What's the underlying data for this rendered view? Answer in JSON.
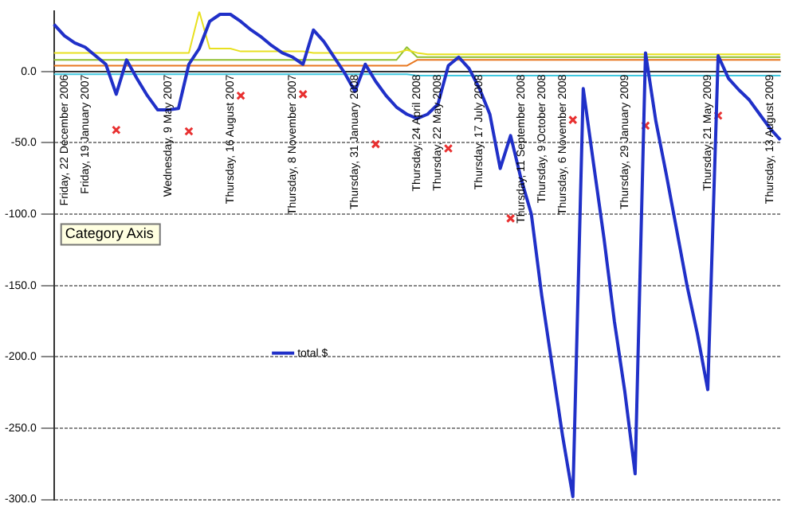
{
  "chart_data": {
    "type": "line",
    "categories": [
      null,
      "Friday, 22 December 2006",
      null,
      "Friday, 19 January 2007",
      null,
      null,
      null,
      null,
      null,
      null,
      null,
      "Wednesday, 9 May 2007",
      null,
      null,
      null,
      null,
      null,
      "Thursday, 16 August 2007",
      null,
      null,
      null,
      null,
      null,
      "Thursday, 8 November 2007",
      null,
      null,
      null,
      null,
      null,
      "Thursday, 31 January 2008",
      null,
      null,
      null,
      null,
      null,
      "Thursday, 24 April 2008",
      null,
      "Thursday, 22 May 2008",
      null,
      null,
      null,
      "Thursday, 17 July 2008",
      null,
      null,
      null,
      "Thursday, 11 September 2008",
      null,
      "Thursday, 9 October 2008",
      null,
      "Thursday, 6 November 2008",
      null,
      null,
      null,
      null,
      null,
      "Thursday, 29 January 2009",
      null,
      null,
      null,
      null,
      null,
      null,
      null,
      "Thursday, 21 May 2009",
      null,
      null,
      null,
      null,
      null,
      "Thursday, 13 August 2009",
      null
    ],
    "series": [
      {
        "color": "#e8e020",
        "values": [
          13,
          13,
          13,
          13,
          13,
          13,
          13,
          13,
          13,
          13,
          13,
          13,
          13,
          13,
          42,
          16,
          16,
          16,
          14,
          14,
          14,
          14,
          14,
          14,
          14,
          13,
          13,
          13,
          13,
          13,
          13,
          13,
          13,
          13,
          15,
          13,
          12,
          12,
          12,
          12,
          12,
          12,
          12,
          12,
          12,
          12,
          12,
          12,
          12,
          12,
          12,
          12,
          12,
          12,
          12,
          12,
          12,
          12,
          12,
          12,
          12,
          12,
          12,
          12,
          12,
          12,
          12,
          12,
          12,
          12,
          12
        ]
      },
      {
        "color": "#90c030",
        "values": [
          8,
          8,
          8,
          8,
          8,
          8,
          8,
          8,
          8,
          8,
          8,
          8,
          8,
          8,
          8,
          8,
          8,
          8,
          8,
          8,
          8,
          8,
          8,
          8,
          8,
          8,
          8,
          8,
          8,
          8,
          8,
          8,
          8,
          8,
          17,
          10,
          10,
          10,
          10,
          10,
          10,
          10,
          10,
          10,
          10,
          10,
          10,
          10,
          10,
          10,
          10,
          10,
          10,
          10,
          10,
          10,
          10,
          10,
          10,
          10,
          10,
          10,
          10,
          10,
          10,
          10,
          10,
          10,
          10,
          10,
          10
        ]
      },
      {
        "color": "#e87820",
        "values": [
          4,
          4,
          4,
          4,
          4,
          4,
          4,
          4,
          4,
          4,
          4,
          4,
          4,
          4,
          4,
          4,
          4,
          4,
          4,
          4,
          4,
          4,
          4,
          4,
          4,
          4,
          4,
          4,
          4,
          4,
          4,
          4,
          4,
          4,
          4,
          8,
          8,
          8,
          8,
          8,
          8,
          8,
          8,
          8,
          8,
          8,
          8,
          8,
          8,
          8,
          8,
          8,
          8,
          8,
          8,
          8,
          8,
          8,
          8,
          8,
          8,
          8,
          8,
          8,
          8,
          8,
          8,
          8,
          8,
          8,
          8
        ]
      },
      {
        "color": "#40c8e0",
        "values": [
          -2,
          -2,
          -2,
          -2,
          -2,
          -2,
          -2,
          -2,
          -2,
          -2,
          -2,
          -2,
          -2,
          -2,
          -2,
          -2,
          -2,
          -2,
          -2,
          -2,
          -2,
          -2,
          -2,
          -2,
          -2,
          -2,
          -2,
          -2,
          -2,
          -2,
          -2,
          -2,
          -2,
          -2,
          -2,
          -3,
          -3,
          -3,
          -3,
          -3,
          -3,
          -3,
          -3,
          -3,
          -3,
          -3,
          -3,
          -3,
          -3,
          -3,
          -3,
          -3,
          -3,
          -3,
          -3,
          -3,
          -3,
          -3,
          -3,
          -3,
          -3,
          -3,
          -3,
          -3,
          -3,
          -3,
          -3,
          -3,
          -3,
          -3,
          -3
        ]
      },
      {
        "name": "total $",
        "color": "#2030c8",
        "values": [
          33,
          25,
          20,
          17,
          11,
          5,
          -16,
          8,
          -5,
          -17,
          -27,
          -27,
          -26,
          5,
          16,
          35,
          40,
          40,
          35,
          29,
          24,
          18,
          13,
          10,
          5,
          29,
          21,
          10,
          -1,
          -14,
          5,
          -7,
          -17,
          -25,
          -30,
          -33,
          -30,
          -23,
          4,
          10,
          2,
          -12,
          -30,
          -68,
          -45,
          -75,
          -100,
          -157,
          -206,
          -255,
          -298,
          -12,
          -65,
          -117,
          -175,
          -224,
          -282,
          13,
          -35,
          -72,
          -111,
          -150,
          -184,
          -223,
          11,
          -5,
          -13,
          -20,
          -30,
          -40,
          -48
        ]
      },
      {
        "type": "scatter",
        "marker": "cross",
        "color": "#e83030",
        "values": [
          null,
          null,
          null,
          null,
          null,
          null,
          -41,
          null,
          null,
          null,
          null,
          null,
          null,
          -42,
          null,
          null,
          null,
          null,
          -17,
          null,
          null,
          null,
          null,
          null,
          -16,
          null,
          null,
          null,
          null,
          null,
          null,
          -51,
          null,
          null,
          null,
          null,
          null,
          null,
          -54,
          null,
          null,
          null,
          null,
          null,
          -103,
          null,
          null,
          null,
          null,
          null,
          -34,
          null,
          null,
          null,
          null,
          null,
          null,
          -38,
          null,
          null,
          null,
          null,
          null,
          null,
          -31,
          null,
          null,
          null,
          null,
          null,
          null
        ]
      }
    ],
    "ylim": [
      -300,
      42
    ],
    "yticks": [
      {
        "value": 0,
        "label": "0.0"
      },
      {
        "value": -50,
        "label": "-50.0"
      },
      {
        "value": -100,
        "label": "-100.0"
      },
      {
        "value": -150,
        "label": "-150.0"
      },
      {
        "value": -200,
        "label": "-200.0"
      },
      {
        "value": -250,
        "label": "-250.0"
      },
      {
        "value": -300,
        "label": "-300.0"
      }
    ],
    "grid": "y",
    "legend": "center",
    "annotations": [
      "Category Axis"
    ]
  }
}
